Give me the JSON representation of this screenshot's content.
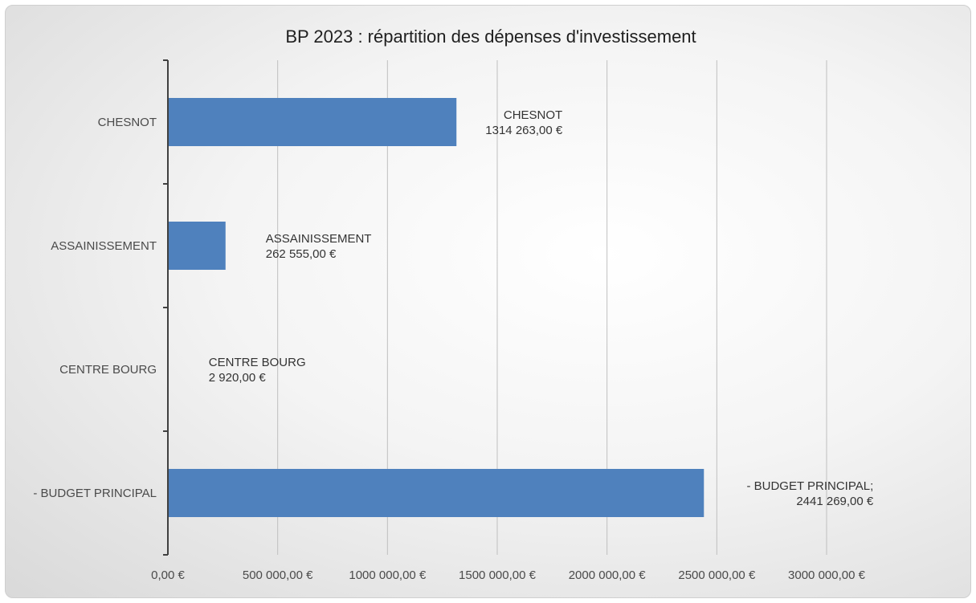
{
  "chart_data": {
    "type": "bar",
    "orientation": "horizontal",
    "title": "BP 2023 : répartition des dépenses d'investissement",
    "categories": [
      "CHESNOT",
      "ASSAINISSEMENT",
      "CENTRE BOURG",
      "- BUDGET PRINCIPAL"
    ],
    "values": [
      1314263.0,
      262555.0,
      2920.0,
      2441269.0
    ],
    "data_labels": [
      [
        "CHESNOT",
        "1314 263,00 €"
      ],
      [
        "ASSAINISSEMENT",
        "262 555,00 €"
      ],
      [
        "CENTRE BOURG",
        "2 920,00 €"
      ],
      [
        "- BUDGET PRINCIPAL;",
        "2441 269,00 €"
      ]
    ],
    "x_ticks": [
      0,
      500000,
      1000000,
      1500000,
      2000000,
      2500000,
      3000000
    ],
    "x_tick_labels": [
      "0,00 €",
      "500 000,00 €",
      "1000 000,00 €",
      "1500 000,00 €",
      "2000 000,00 €",
      "2500 000,00 €",
      "3000 000,00 €"
    ],
    "xlim": [
      0,
      3000000
    ],
    "grid": true,
    "legend": "none",
    "colors": {
      "bar": "#4f81bd",
      "grid": "#bfbfbf",
      "axis": "#404040"
    }
  }
}
